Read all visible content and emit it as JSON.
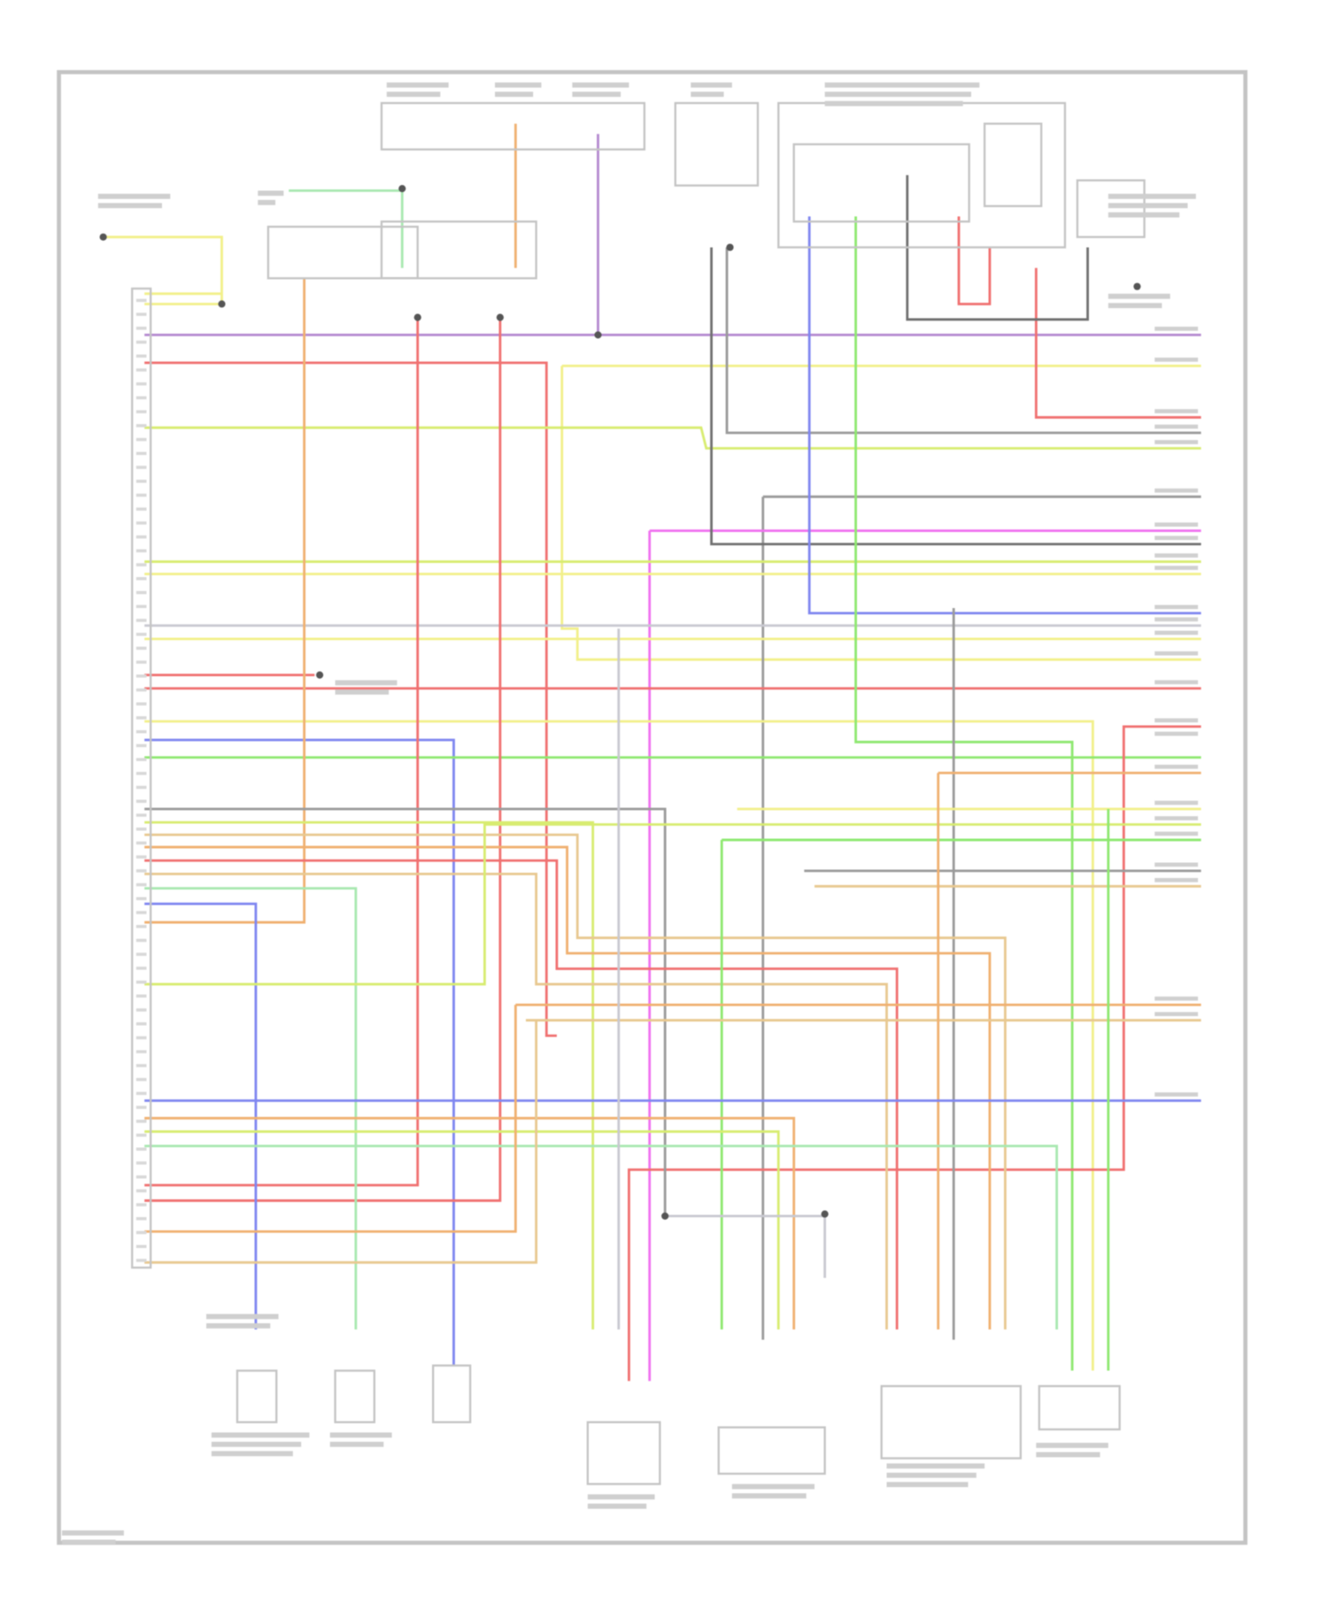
{
  "diagram": {
    "wire_colors": {
      "violet": "#b58ad0",
      "red": "#f07070",
      "yellow": "#f2f08a",
      "yellow_green": "#d8ec70",
      "green": "#8ee870",
      "blue": "#7f86f0",
      "gray": "#9a9a9a",
      "dark_gray": "#707070",
      "orange": "#f0b070",
      "magenta": "#f070f0",
      "tan": "#e8c890",
      "light_green": "#a8e8b0",
      "light_gray": "#c8c8d0"
    },
    "frame_color": "#bdbdbd",
    "label_color": "#b0b0b0"
  }
}
